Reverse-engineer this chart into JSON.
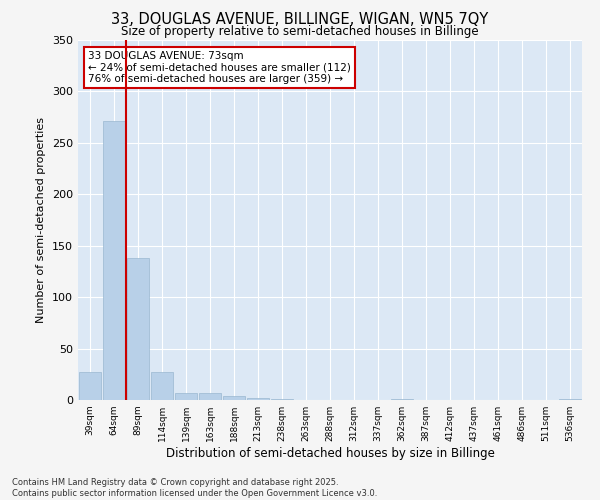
{
  "title_line1": "33, DOUGLAS AVENUE, BILLINGE, WIGAN, WN5 7QY",
  "title_line2": "Size of property relative to semi-detached houses in Billinge",
  "xlabel": "Distribution of semi-detached houses by size in Billinge",
  "ylabel": "Number of semi-detached properties",
  "categories": [
    "39sqm",
    "64sqm",
    "89sqm",
    "114sqm",
    "139sqm",
    "163sqm",
    "188sqm",
    "213sqm",
    "238sqm",
    "263sqm",
    "288sqm",
    "312sqm",
    "337sqm",
    "362sqm",
    "387sqm",
    "412sqm",
    "437sqm",
    "461sqm",
    "486sqm",
    "511sqm",
    "536sqm"
  ],
  "values": [
    27,
    271,
    138,
    27,
    7,
    7,
    4,
    2,
    1,
    0,
    0,
    0,
    0,
    1,
    0,
    0,
    0,
    0,
    0,
    0,
    1
  ],
  "bar_color": "#b8d0e8",
  "bar_edge_color": "#9ab8d0",
  "vline_x": 1.5,
  "vline_color": "#cc0000",
  "annotation_title": "33 DOUGLAS AVENUE: 73sqm",
  "annotation_line2": "← 24% of semi-detached houses are smaller (112)",
  "annotation_line3": "76% of semi-detached houses are larger (359) →",
  "annotation_box_color": "#cc0000",
  "annotation_text_color": "#000000",
  "ylim": [
    0,
    350
  ],
  "yticks": [
    0,
    50,
    100,
    150,
    200,
    250,
    300,
    350
  ],
  "background_color": "#dce8f5",
  "grid_color": "#ffffff",
  "fig_background": "#f5f5f5",
  "footer_line1": "Contains HM Land Registry data © Crown copyright and database right 2025.",
  "footer_line2": "Contains public sector information licensed under the Open Government Licence v3.0."
}
